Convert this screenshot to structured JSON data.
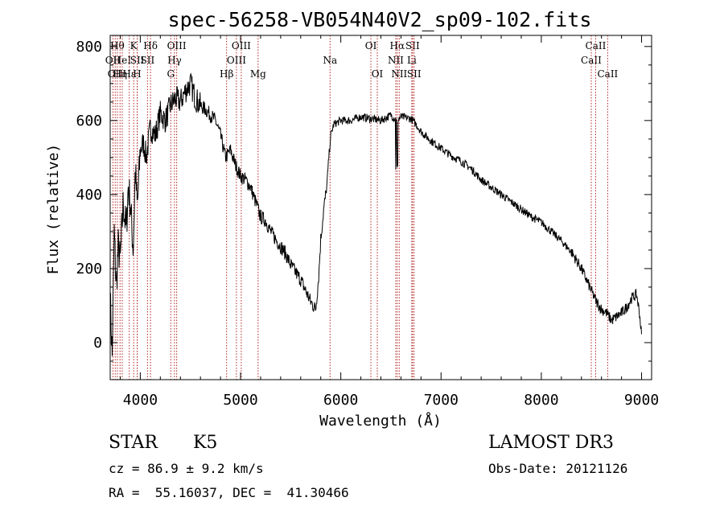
{
  "chart_data": {
    "type": "line",
    "title": "spec-56258-VB054N40V2_sp09-102.fits",
    "xlabel": "Wavelength (Å)",
    "ylabel": "Flux (relative)",
    "xlim": [
      3700,
      9100
    ],
    "ylim": [
      -100,
      830
    ],
    "xticks": [
      4000,
      5000,
      6000,
      7000,
      8000,
      9000
    ],
    "yticks": [
      0,
      200,
      400,
      600,
      800
    ],
    "series": [
      {
        "name": "spectrum",
        "anchors": [
          [
            3700,
            120
          ],
          [
            3720,
            -40
          ],
          [
            3740,
            300
          ],
          [
            3760,
            150
          ],
          [
            3780,
            260
          ],
          [
            3800,
            220
          ],
          [
            3830,
            380
          ],
          [
            3860,
            300
          ],
          [
            3880,
            420
          ],
          [
            3900,
            380
          ],
          [
            3930,
            250
          ],
          [
            3950,
            470
          ],
          [
            3970,
            360
          ],
          [
            4000,
            520
          ],
          [
            4030,
            540
          ],
          [
            4060,
            500
          ],
          [
            4100,
            580
          ],
          [
            4150,
            560
          ],
          [
            4200,
            620
          ],
          [
            4250,
            600
          ],
          [
            4300,
            640
          ],
          [
            4350,
            660
          ],
          [
            4400,
            650
          ],
          [
            4450,
            680
          ],
          [
            4500,
            700
          ],
          [
            4550,
            660
          ],
          [
            4600,
            640
          ],
          [
            4650,
            630
          ],
          [
            4700,
            615
          ],
          [
            4750,
            600
          ],
          [
            4800,
            560
          ],
          [
            4850,
            500
          ],
          [
            4900,
            520
          ],
          [
            4950,
            480
          ],
          [
            5000,
            450
          ],
          [
            5050,
            440
          ],
          [
            5100,
            420
          ],
          [
            5150,
            380
          ],
          [
            5200,
            340
          ],
          [
            5250,
            330
          ],
          [
            5300,
            300
          ],
          [
            5350,
            280
          ],
          [
            5400,
            260
          ],
          [
            5450,
            240
          ],
          [
            5500,
            210
          ],
          [
            5550,
            190
          ],
          [
            5600,
            170
          ],
          [
            5650,
            140
          ],
          [
            5700,
            110
          ],
          [
            5750,
            90
          ],
          [
            5780,
            180
          ],
          [
            5800,
            280
          ],
          [
            5830,
            360
          ],
          [
            5860,
            420
          ],
          [
            5880,
            500
          ],
          [
            5900,
            560
          ],
          [
            5930,
            590
          ],
          [
            6000,
            600
          ],
          [
            6100,
            600
          ],
          [
            6200,
            610
          ],
          [
            6300,
            605
          ],
          [
            6400,
            600
          ],
          [
            6500,
            615
          ],
          [
            6560,
            600
          ],
          [
            6600,
            610
          ],
          [
            6700,
            605
          ],
          [
            6750,
            590
          ],
          [
            6800,
            570
          ],
          [
            6900,
            545
          ],
          [
            7000,
            525
          ],
          [
            7100,
            505
          ],
          [
            7200,
            490
          ],
          [
            7300,
            470
          ],
          [
            7400,
            440
          ],
          [
            7500,
            420
          ],
          [
            7600,
            400
          ],
          [
            7700,
            380
          ],
          [
            7800,
            360
          ],
          [
            7900,
            340
          ],
          [
            8000,
            325
          ],
          [
            8100,
            300
          ],
          [
            8200,
            275
          ],
          [
            8300,
            245
          ],
          [
            8400,
            200
          ],
          [
            8450,
            170
          ],
          [
            8500,
            140
          ],
          [
            8550,
            110
          ],
          [
            8600,
            90
          ],
          [
            8650,
            80
          ],
          [
            8700,
            60
          ],
          [
            8750,
            70
          ],
          [
            8800,
            80
          ],
          [
            8850,
            95
          ],
          [
            8900,
            120
          ],
          [
            8950,
            130
          ],
          [
            8980,
            80
          ],
          [
            9000,
            20
          ]
        ]
      }
    ],
    "lines": [
      {
        "w": 3727,
        "text": "OII",
        "row": 2
      },
      {
        "w": 3750,
        "text": "OII",
        "row": 3
      },
      {
        "w": 3771,
        "text": "Hθ",
        "row": 1
      },
      {
        "w": 3798,
        "text": "Hη",
        "row": 3
      },
      {
        "w": 3820,
        "text": "HeI",
        "row": 2
      },
      {
        "w": 3890,
        "text": "Hε",
        "row": 3
      },
      {
        "w": 3934,
        "text": "K",
        "row": 1
      },
      {
        "w": 3969,
        "text": "H",
        "row": 3
      },
      {
        "w": 3970,
        "text": "SII",
        "row": 2
      },
      {
        "w": 4102,
        "text": "Hδ",
        "row": 1
      },
      {
        "w": 4072,
        "text": "SII",
        "row": 2
      },
      {
        "w": 4304,
        "text": "G",
        "row": 3
      },
      {
        "w": 4341,
        "text": "Hγ",
        "row": 2
      },
      {
        "w": 4363,
        "text": "OIII",
        "row": 1
      },
      {
        "w": 4861,
        "text": "Hβ",
        "row": 3
      },
      {
        "w": 4959,
        "text": "OIII",
        "row": 2
      },
      {
        "w": 5007,
        "text": "OIII",
        "row": 1
      },
      {
        "w": 5175,
        "text": "Mg",
        "row": 3
      },
      {
        "w": 5893,
        "text": "Na",
        "row": 2
      },
      {
        "w": 6300,
        "text": "OI",
        "row": 1
      },
      {
        "w": 6364,
        "text": "OI",
        "row": 3
      },
      {
        "w": 6548,
        "text": "NII",
        "row": 2
      },
      {
        "w": 6563,
        "text": "Hα",
        "row": 1
      },
      {
        "w": 6583,
        "text": "NII",
        "row": 3
      },
      {
        "w": 6708,
        "text": "Li",
        "row": 2
      },
      {
        "w": 6716,
        "text": "SII",
        "row": 1
      },
      {
        "w": 6731,
        "text": "SII",
        "row": 3
      },
      {
        "w": 8498,
        "text": "CaII",
        "row": 2
      },
      {
        "w": 8542,
        "text": "CaII",
        "row": 1
      },
      {
        "w": 8662,
        "text": "CaII",
        "row": 3
      }
    ]
  },
  "info": {
    "class": "STAR",
    "subclass": "K5",
    "survey": "LAMOST DR3",
    "cz": "cz = 86.9 ± 9.2 km/s",
    "obs_date": "Obs-Date: 20121126",
    "radec": "RA =  55.16037, DEC =  41.30466"
  }
}
